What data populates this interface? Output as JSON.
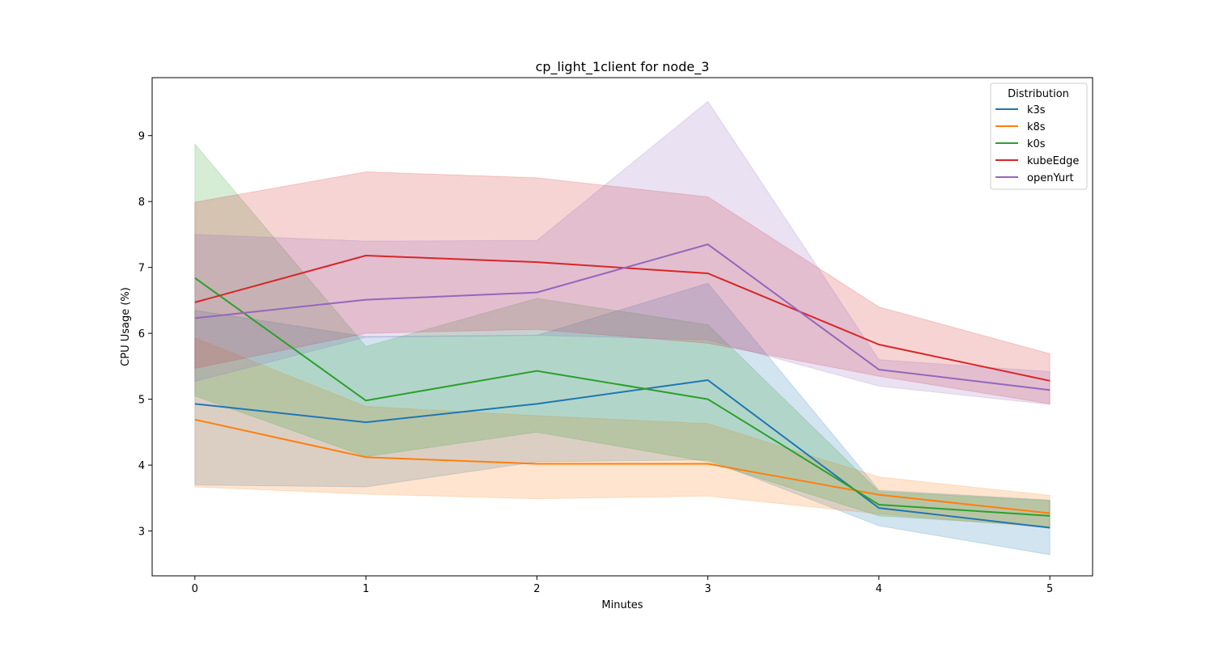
{
  "chart_data": {
    "type": "line",
    "title": "cp_light_1client for node_3",
    "xlabel": "Minutes",
    "ylabel": "CPU Usage (%)",
    "x": [
      0,
      1,
      2,
      3,
      4,
      5
    ],
    "xticks": [
      "0",
      "1",
      "2",
      "3",
      "4",
      "5"
    ],
    "yticks": [
      "3",
      "4",
      "5",
      "6",
      "7",
      "8",
      "9"
    ],
    "xlim": [
      -0.25,
      5.25
    ],
    "ylim": [
      2.32,
      9.88
    ],
    "legend": {
      "title": "Distribution",
      "position": "top-right"
    },
    "series": [
      {
        "name": "k3s",
        "color": "#1f77b4",
        "values": [
          4.93,
          4.65,
          4.93,
          5.29,
          3.35,
          3.05
        ],
        "lower": [
          3.7,
          3.67,
          4.05,
          4.08,
          3.08,
          2.64
        ],
        "upper": [
          6.35,
          5.95,
          5.97,
          6.76,
          3.62,
          3.47
        ]
      },
      {
        "name": "k8s",
        "color": "#ff7f0e",
        "values": [
          4.69,
          4.12,
          4.02,
          4.02,
          3.55,
          3.27
        ],
        "lower": [
          3.67,
          3.56,
          3.49,
          3.53,
          3.26,
          3.05
        ],
        "upper": [
          5.93,
          4.89,
          4.75,
          4.63,
          3.82,
          3.54
        ]
      },
      {
        "name": "k0s",
        "color": "#2ca02c",
        "values": [
          6.84,
          4.98,
          5.43,
          5.0,
          3.4,
          3.23
        ],
        "lower": [
          5.05,
          4.13,
          4.5,
          4.05,
          3.23,
          3.07
        ],
        "upper": [
          8.87,
          5.8,
          6.53,
          6.13,
          3.6,
          3.46
        ]
      },
      {
        "name": "kubeEdge",
        "color": "#d62728",
        "values": [
          6.47,
          7.18,
          7.08,
          6.91,
          5.83,
          5.28
        ],
        "lower": [
          5.47,
          6.0,
          6.06,
          5.85,
          5.35,
          4.93
        ],
        "upper": [
          7.99,
          8.45,
          8.36,
          8.07,
          6.4,
          5.69
        ]
      },
      {
        "name": "openYurt",
        "color": "#9467bd",
        "values": [
          6.23,
          6.51,
          6.62,
          7.35,
          5.45,
          5.14
        ],
        "lower": [
          5.27,
          5.94,
          5.97,
          5.9,
          5.2,
          4.92
        ],
        "upper": [
          7.5,
          7.4,
          7.41,
          9.52,
          5.6,
          5.42
        ]
      }
    ]
  }
}
